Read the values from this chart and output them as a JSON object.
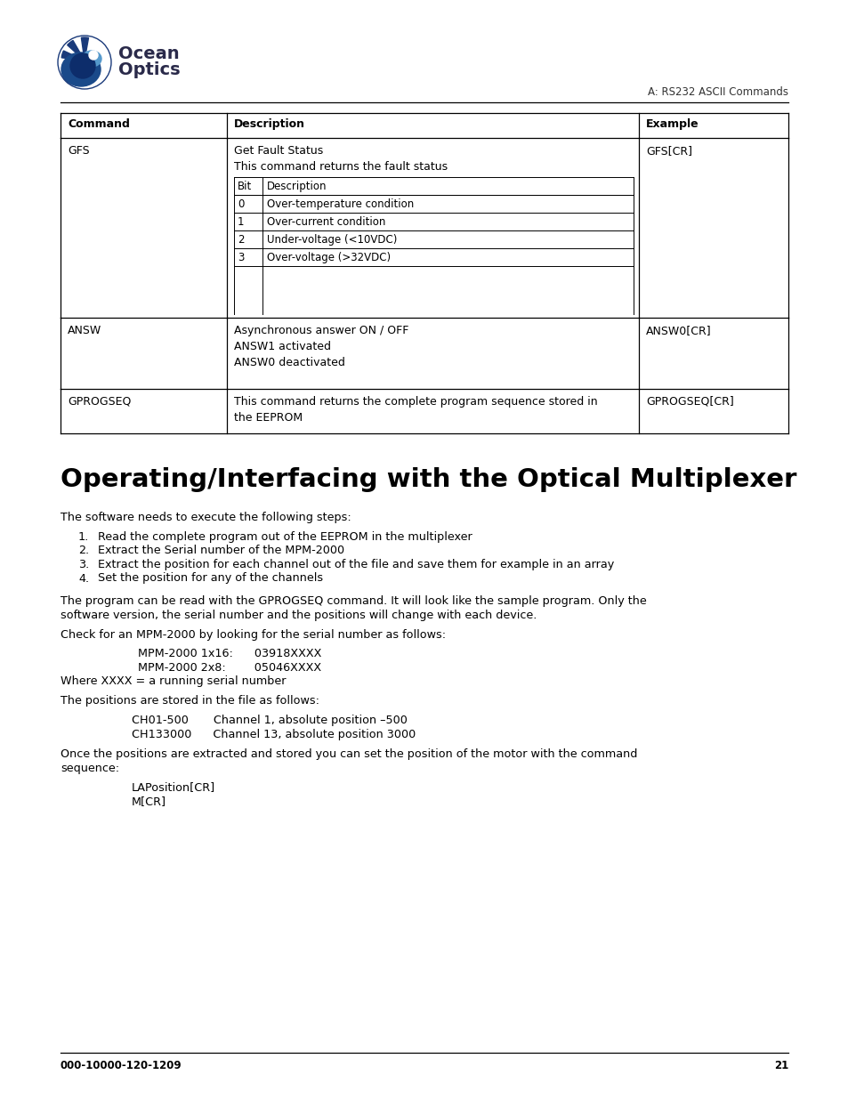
{
  "page_bg": "#ffffff",
  "header_right_text": "A: RS232 ASCII Commands",
  "footer_left_text": "000-10000-120-1209",
  "footer_right_text": "21",
  "section_title": "Operating/Interfacing with the Optical Multiplexer",
  "table": {
    "inner_table_rows": [
      [
        "0",
        "Over-temperature condition"
      ],
      [
        "1",
        "Over-current condition"
      ],
      [
        "2",
        "Under-voltage (<10VDC)"
      ],
      [
        "3",
        "Over-voltage (>32VDC)"
      ]
    ]
  }
}
